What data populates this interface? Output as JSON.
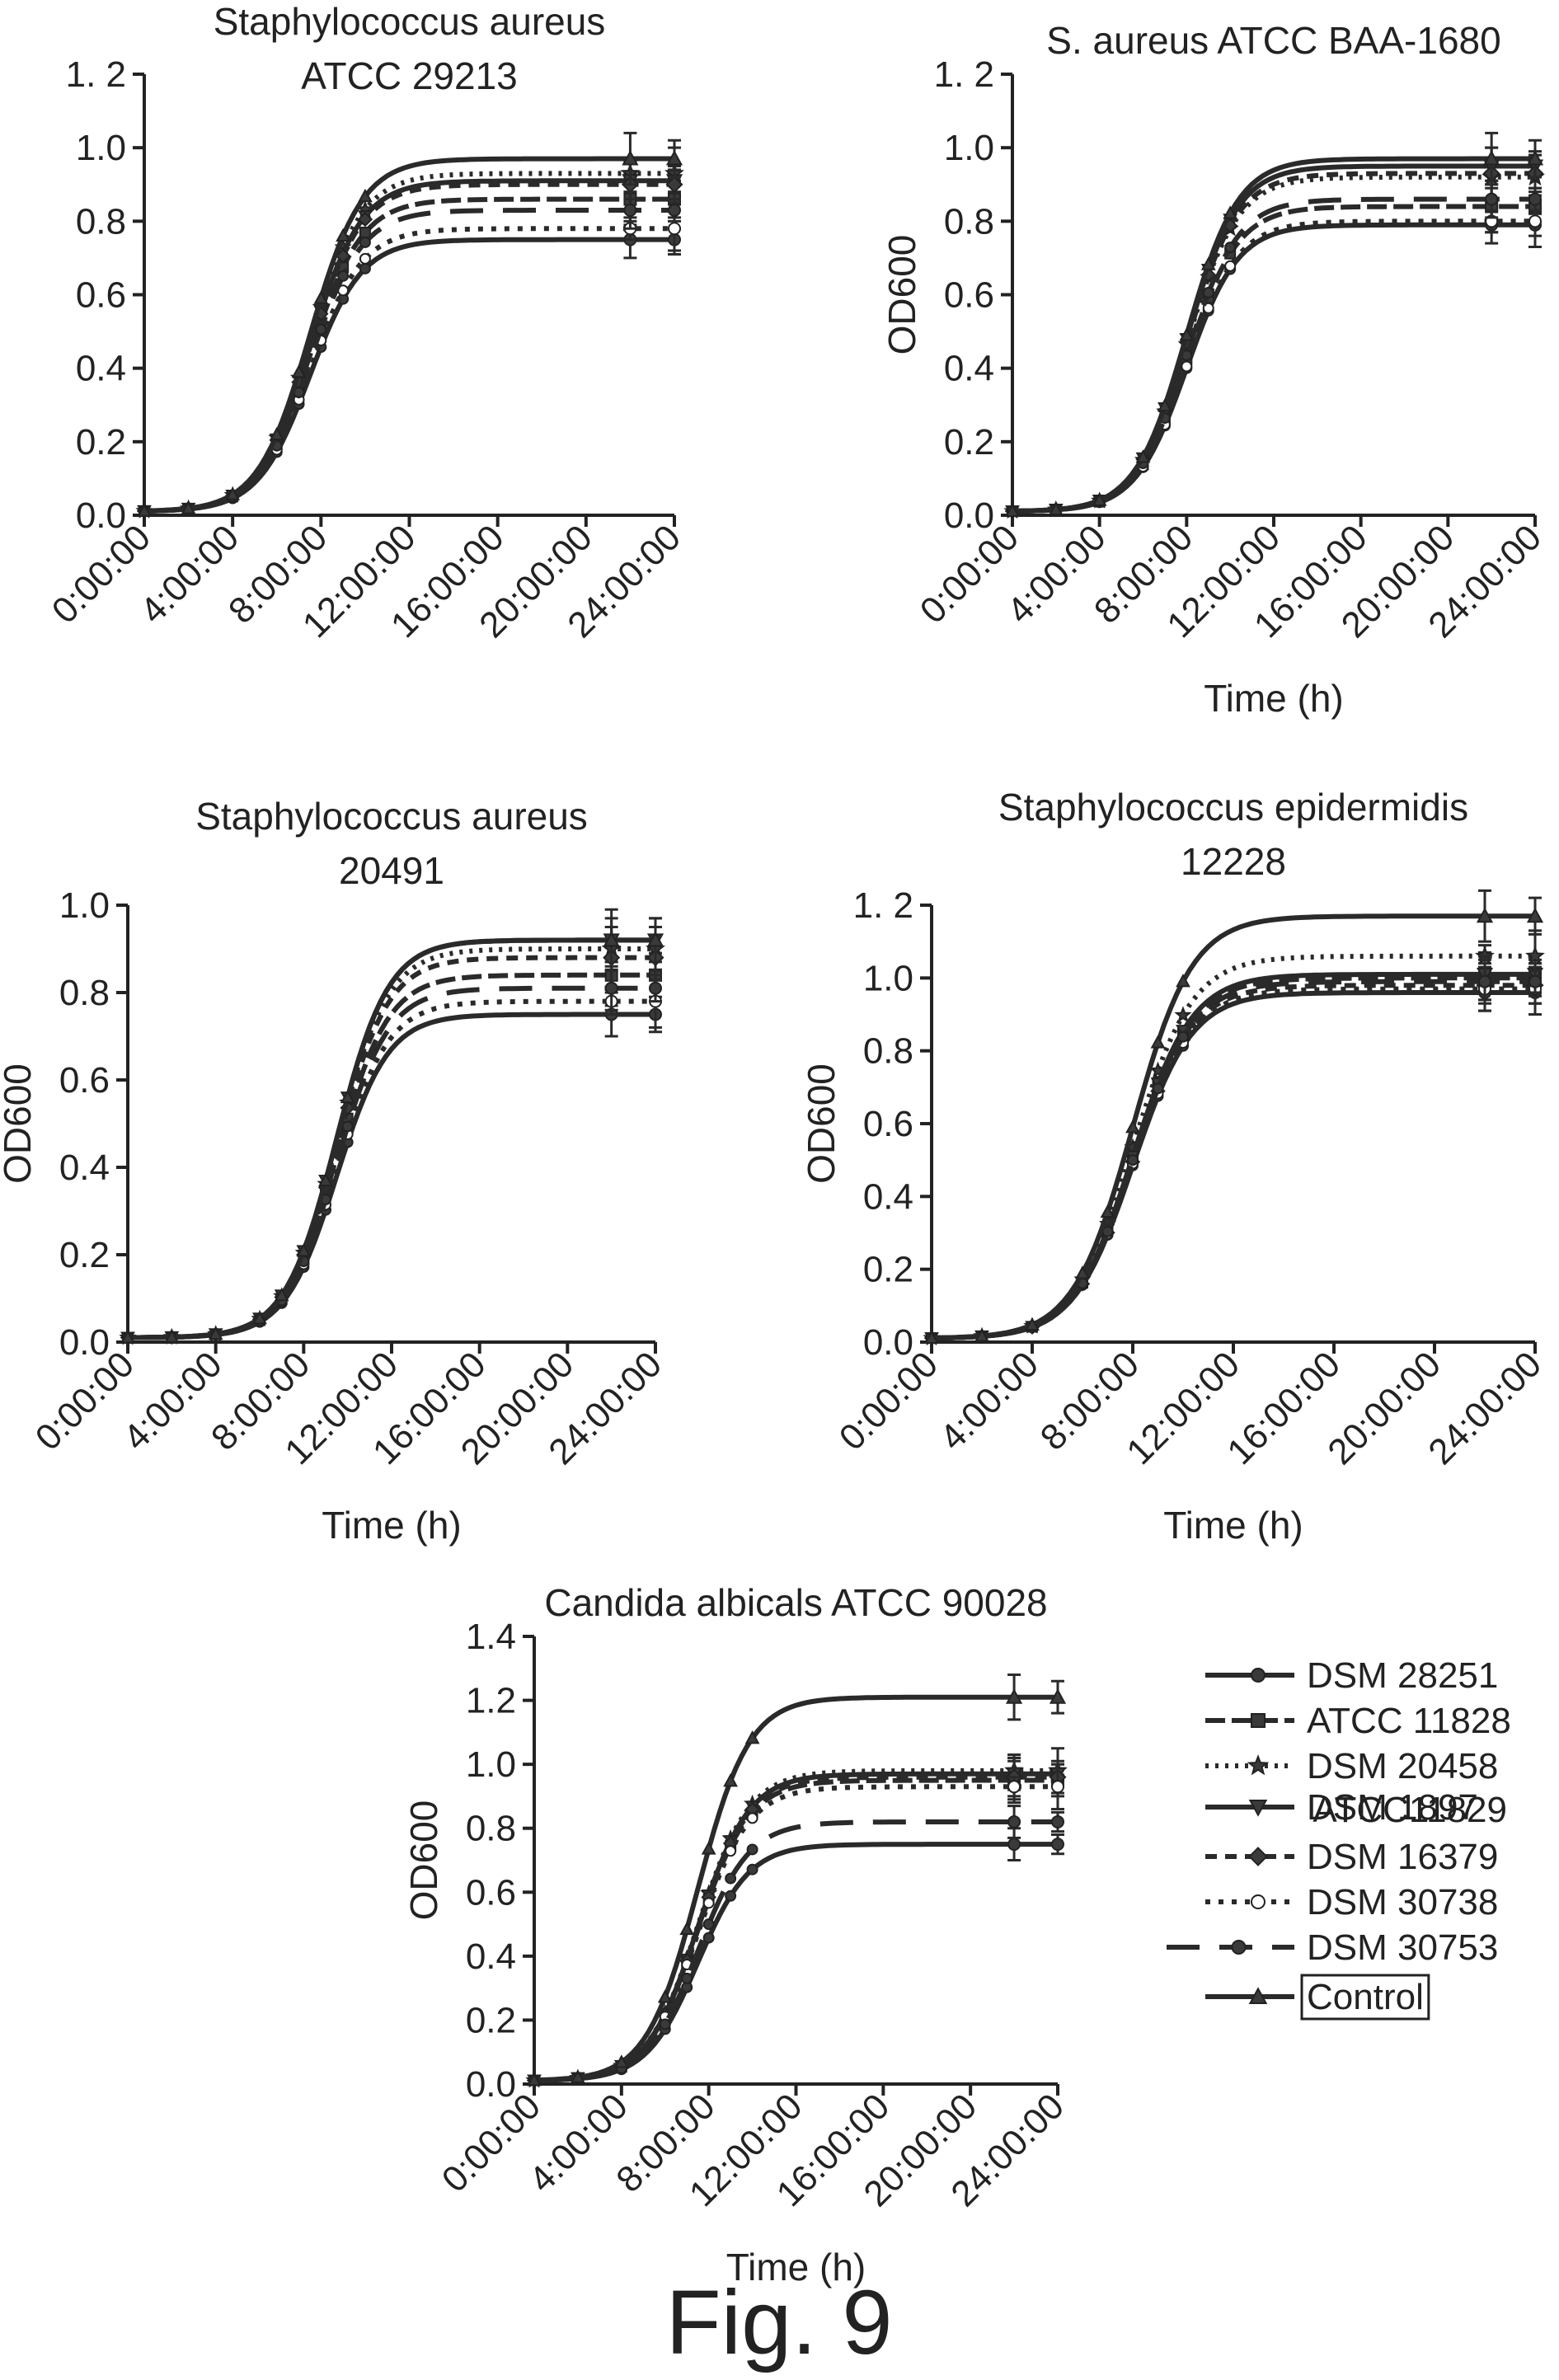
{
  "figure_caption": "Fig. 9",
  "legend": {
    "entries": [
      {
        "label": "DSM 28251",
        "dash": "",
        "marker": "circle"
      },
      {
        "label": "ATCC 11828",
        "dash": "24 8",
        "marker": "square"
      },
      {
        "label": "DSM 20458",
        "sublabel": "ATCC11829",
        "dash": "4 8",
        "marker": "star"
      },
      {
        "label": "DSM 1897",
        "dash": "",
        "marker": "triangle-down"
      },
      {
        "label": "DSM 16379",
        "dash": "14 10",
        "marker": "diamond"
      },
      {
        "label": "DSM 30738",
        "dash": "6 10",
        "marker": "circle-open"
      },
      {
        "label": "DSM 30753",
        "dash": "40 24",
        "marker": "circle"
      },
      {
        "label": "Control",
        "dash": "",
        "marker": "triangle-up",
        "boxed": true
      }
    ]
  },
  "chart_data": [
    {
      "type": "line",
      "title": "Staphylococcus aureus",
      "subtitle": "ATCC 29213",
      "xlabel": "",
      "ylabel": "",
      "x_ticks": [
        "0:00:00",
        "4:00:00",
        "8:00:00",
        "12:00:00",
        "16:00:00",
        "20:00:00",
        "24:00:00"
      ],
      "xlim": [
        0,
        24
      ],
      "ylim": [
        0,
        1.2
      ],
      "y_ticks": [
        "0.0",
        "0.2",
        "0.4",
        "0.6",
        "0.8",
        "1.0",
        "1. 2"
      ],
      "grid": false,
      "midpoint_hours": 7.5,
      "series": [
        {
          "name": "DSM 28251",
          "plateau": 0.75
        },
        {
          "name": "ATCC 11828",
          "plateau": 0.86
        },
        {
          "name": "DSM 20458",
          "plateau": 0.93
        },
        {
          "name": "DSM 1897",
          "plateau": 0.91
        },
        {
          "name": "DSM 16379",
          "plateau": 0.9
        },
        {
          "name": "DSM 30738",
          "plateau": 0.78
        },
        {
          "name": "DSM 30753",
          "plateau": 0.83
        },
        {
          "name": "Control",
          "plateau": 0.97
        }
      ]
    },
    {
      "type": "line",
      "title": "S. aureus ATCC BAA-1680",
      "subtitle": "",
      "xlabel": "Time (h)",
      "ylabel": "OD600",
      "x_ticks": [
        "0:00:00",
        "4:00:00",
        "8:00:00",
        "12:00:00",
        "16:00:00",
        "20:00:00",
        "24:00:00"
      ],
      "xlim": [
        0,
        24
      ],
      "ylim": [
        0,
        1.2
      ],
      "y_ticks": [
        "0.0",
        "0.2",
        "0.4",
        "0.6",
        "0.8",
        "1.0",
        "1. 2"
      ],
      "grid": false,
      "midpoint_hours": 8.0,
      "series": [
        {
          "name": "DSM 28251",
          "plateau": 0.79
        },
        {
          "name": "ATCC 11828",
          "plateau": 0.84
        },
        {
          "name": "DSM 20458",
          "plateau": 0.92
        },
        {
          "name": "DSM 1897",
          "plateau": 0.95
        },
        {
          "name": "DSM 16379",
          "plateau": 0.93
        },
        {
          "name": "DSM 30738",
          "plateau": 0.8
        },
        {
          "name": "DSM 30753",
          "plateau": 0.86
        },
        {
          "name": "Control",
          "plateau": 0.97
        }
      ]
    },
    {
      "type": "line",
      "title": "Staphylococcus aureus",
      "subtitle": "20491",
      "xlabel": "Time (h)",
      "ylabel": "OD600",
      "x_ticks": [
        "0:00:00",
        "4:00:00",
        "8:00:00",
        "12:00:00",
        "16:00:00",
        "20:00:00",
        "24:00:00"
      ],
      "xlim": [
        0,
        24
      ],
      "ylim": [
        0,
        1.0
      ],
      "y_ticks": [
        "0.0",
        "0.2",
        "0.4",
        "0.6",
        "0.8",
        "1.0"
      ],
      "grid": false,
      "midpoint_hours": 9.5,
      "series": [
        {
          "name": "DSM 28251",
          "plateau": 0.75
        },
        {
          "name": "ATCC 11828",
          "plateau": 0.84
        },
        {
          "name": "DSM 20458",
          "plateau": 0.9
        },
        {
          "name": "DSM 1897",
          "plateau": 0.92
        },
        {
          "name": "DSM 16379",
          "plateau": 0.88
        },
        {
          "name": "DSM 30738",
          "plateau": 0.78
        },
        {
          "name": "DSM 30753",
          "plateau": 0.81
        },
        {
          "name": "Control",
          "plateau": 0.92
        }
      ]
    },
    {
      "type": "line",
      "title": "Staphylococcus epidermidis",
      "subtitle": "12228",
      "xlabel": "Time (h)",
      "ylabel": "OD600",
      "x_ticks": [
        "0:00:00",
        "4:00:00",
        "8:00:00",
        "12:00:00",
        "16:00:00",
        "20:00:00",
        "24:00:00"
      ],
      "xlim": [
        0,
        24
      ],
      "ylim": [
        0,
        1.2
      ],
      "y_ticks": [
        "0.0",
        "0.2",
        "0.4",
        "0.6",
        "0.8",
        "1.0",
        "1. 2"
      ],
      "grid": false,
      "midpoint_hours": 8.0,
      "series": [
        {
          "name": "DSM 28251",
          "plateau": 0.96
        },
        {
          "name": "ATCC 11828",
          "plateau": 1.0
        },
        {
          "name": "DSM 20458",
          "plateau": 1.06
        },
        {
          "name": "DSM 1897",
          "plateau": 1.01
        },
        {
          "name": "DSM 16379",
          "plateau": 0.98
        },
        {
          "name": "DSM 30738",
          "plateau": 0.97
        },
        {
          "name": "DSM 30753",
          "plateau": 0.99
        },
        {
          "name": "Control",
          "plateau": 1.17
        }
      ]
    },
    {
      "type": "line",
      "title": "Candida albicals ATCC 90028",
      "subtitle": "",
      "xlabel": "Time (h)",
      "ylabel": "OD600",
      "x_ticks": [
        "0:00:00",
        "4:00:00",
        "8:00:00",
        "12:00:00",
        "16:00:00",
        "20:00:00",
        "24:00:00"
      ],
      "xlim": [
        0,
        24
      ],
      "ylim": [
        0,
        1.4
      ],
      "y_ticks": [
        "0.0",
        "0.2",
        "0.4",
        "0.6",
        "0.8",
        "1.0",
        "1.2",
        "1.4"
      ],
      "grid": false,
      "midpoint_hours": 7.5,
      "series": [
        {
          "name": "DSM 28251",
          "plateau": 0.75
        },
        {
          "name": "ATCC 11828",
          "plateau": 0.95
        },
        {
          "name": "DSM 20458",
          "plateau": 0.98
        },
        {
          "name": "DSM 1897",
          "plateau": 0.97
        },
        {
          "name": "DSM 16379",
          "plateau": 0.96
        },
        {
          "name": "DSM 30738",
          "plateau": 0.93
        },
        {
          "name": "DSM 30753",
          "plateau": 0.82
        },
        {
          "name": "Control",
          "plateau": 1.21
        }
      ]
    }
  ]
}
